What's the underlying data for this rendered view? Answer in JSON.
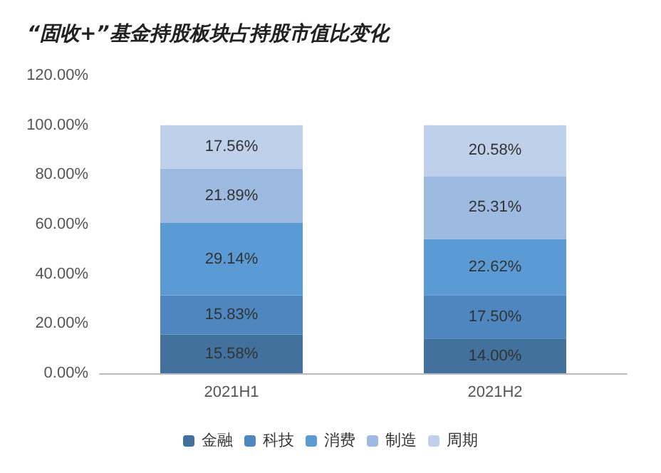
{
  "chart_data": {
    "type": "bar",
    "title": "“固收+”基金持股板块占持股市值比变化",
    "categories": [
      "2021H1",
      "2021H2"
    ],
    "stacked": true,
    "ylim": [
      0,
      120
    ],
    "yticks": [
      {
        "value": 0,
        "label": "0.00%"
      },
      {
        "value": 20,
        "label": "20.00%"
      },
      {
        "value": 40,
        "label": "40.00%"
      },
      {
        "value": 60,
        "label": "60.00%"
      },
      {
        "value": 80,
        "label": "80.00%"
      },
      {
        "value": 100,
        "label": "100.00%"
      },
      {
        "value": 120,
        "label": "120.00%"
      }
    ],
    "series": [
      {
        "name": "金融",
        "color": "#41719c",
        "values": [
          15.58,
          14.0
        ],
        "value_labels": [
          "15.58%",
          "14.00%"
        ]
      },
      {
        "name": "科技",
        "color": "#4e86c0",
        "values": [
          15.83,
          17.5
        ],
        "value_labels": [
          "15.83%",
          "17.50%"
        ]
      },
      {
        "name": "消费",
        "color": "#5b9bd5",
        "values": [
          29.14,
          22.62
        ],
        "value_labels": [
          "29.14%",
          "22.62%"
        ]
      },
      {
        "name": "制造",
        "color": "#9dbbe0",
        "values": [
          21.89,
          25.31
        ],
        "value_labels": [
          "21.89%",
          "25.31%"
        ]
      },
      {
        "name": "周期",
        "color": "#bed0ea",
        "values": [
          17.56,
          20.58
        ],
        "value_labels": [
          "17.56%",
          "20.58%"
        ]
      }
    ],
    "grid": false,
    "legend": "bottom"
  }
}
